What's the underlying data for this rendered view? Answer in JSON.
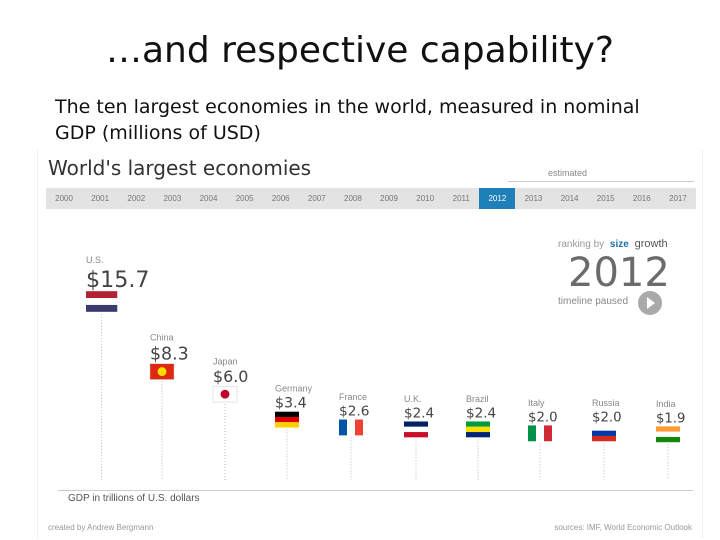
{
  "slide": {
    "title": "…and respective capability?",
    "subtitle": "The ten largest economies in the world, measured in nominal GDP (millions of USD)"
  },
  "graphic": {
    "title": "World's largest economies",
    "estimated_label": "estimated",
    "years": [
      "2000",
      "2001",
      "2002",
      "2003",
      "2004",
      "2005",
      "2006",
      "2007",
      "2008",
      "2009",
      "2010",
      "2011",
      "2012",
      "2013",
      "2014",
      "2015",
      "2016",
      "2017"
    ],
    "selected_year": "2012",
    "mode_prefix": "ranking by",
    "mode_size": "size",
    "mode_growth": "growth",
    "big_year": "2012",
    "timeline_status": "timeline paused",
    "axis_caption": "GDP in trillions of U.S. dollars",
    "credit": "created by Andrew Bergmann",
    "source": "sources: IMF, World Economic Outlook",
    "accent_color": "#1f7fb8"
  },
  "chart_data": {
    "type": "bar",
    "title": "World's largest economies",
    "xlabel": "",
    "ylabel": "GDP in trillions of U.S. dollars",
    "categories": [
      "U.S.",
      "China",
      "Japan",
      "Germany",
      "France",
      "U.K.",
      "Brazil",
      "Italy",
      "Russia",
      "India"
    ],
    "value_labels": [
      "$15.7",
      "$8.3",
      "$6.0",
      "$3.4",
      "$2.6",
      "$2.4",
      "$2.4",
      "$2.0",
      "$2.0",
      "$1.9"
    ],
    "values": [
      15.7,
      8.3,
      6.0,
      3.4,
      2.6,
      2.4,
      2.4,
      2.0,
      2.0,
      1.9
    ],
    "ylim": [
      0,
      16
    ],
    "grid": false,
    "legend": "none"
  }
}
